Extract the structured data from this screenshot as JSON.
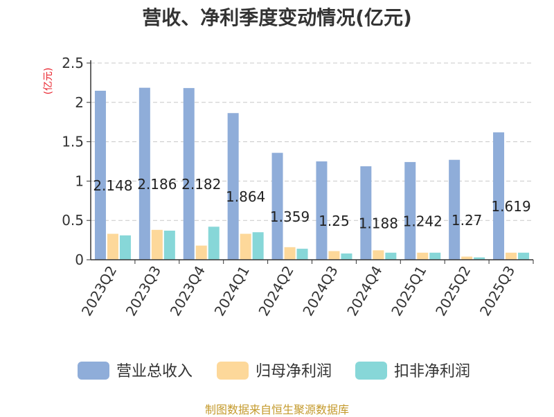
{
  "chart_data": {
    "type": "bar",
    "title": "营收、净利季度变动情况(亿元)",
    "ylabel": "(亿元)",
    "xlabel": "",
    "categories": [
      "2023Q2",
      "2023Q3",
      "2023Q4",
      "2024Q1",
      "2024Q2",
      "2024Q3",
      "2024Q4",
      "2025Q1",
      "2025Q2",
      "2025Q3"
    ],
    "series": [
      {
        "name": "营业总收入",
        "color": "#8fadd9",
        "values": [
          2.148,
          2.186,
          2.182,
          1.864,
          1.359,
          1.25,
          1.188,
          1.242,
          1.27,
          1.619
        ]
      },
      {
        "name": "归母净利润",
        "color": "#fdd89a",
        "values": [
          0.33,
          0.38,
          0.18,
          0.33,
          0.16,
          0.11,
          0.12,
          0.09,
          0.04,
          0.09
        ]
      },
      {
        "name": "扣非净利润",
        "color": "#87d7d8",
        "values": [
          0.31,
          0.37,
          0.42,
          0.35,
          0.14,
          0.08,
          0.09,
          0.09,
          0.03,
          0.09
        ]
      }
    ],
    "data_labels": [
      "2.148",
      "2.186",
      "2.182",
      "1.864",
      "1.359",
      "1.25",
      "1.188",
      "1.242",
      "1.27",
      "1.619"
    ],
    "yticks": [
      "0",
      "0.5",
      "1",
      "1.5",
      "2",
      "2.5"
    ],
    "ylim": [
      0,
      2.5
    ],
    "grid": true,
    "legend_position": "bottom"
  },
  "source": "制图数据来自恒生聚源数据库"
}
